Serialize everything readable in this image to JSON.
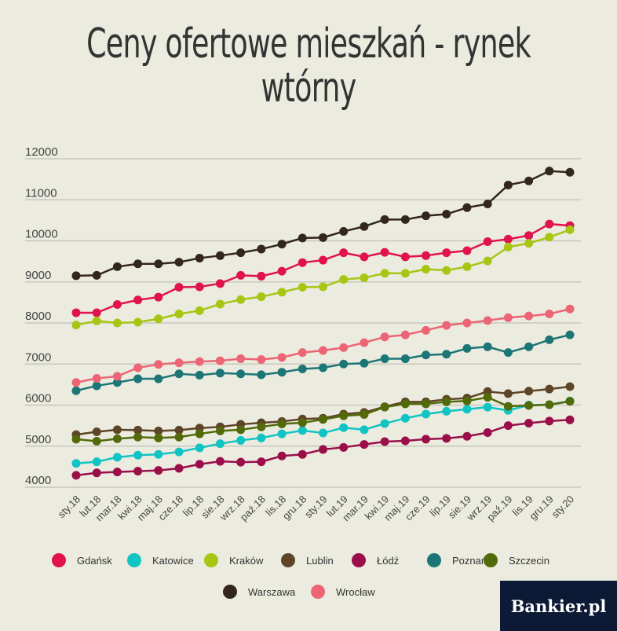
{
  "chart_data": {
    "type": "line",
    "title": "Ceny ofertowe mieszkań - rynek wtórny",
    "x": [
      "sty.18",
      "lut.18",
      "mar.18",
      "kwi.18",
      "maj.18",
      "cze.18",
      "lip.18",
      "sie.18",
      "wrz.18",
      "paź.18",
      "lis.18",
      "gru.18",
      "sty.19",
      "lut.19",
      "mar.19",
      "kwi.19",
      "maj.19",
      "cze.19",
      "lip.19",
      "sie.19",
      "wrz.19",
      "paź.19",
      "lis.19",
      "gru.19",
      "sty.20"
    ],
    "yticks": [
      4000,
      5000,
      6000,
      7000,
      8000,
      9000,
      10000,
      11000,
      12000
    ],
    "ylim": [
      3800,
      12200
    ],
    "grid": true,
    "legend_position": "bottom",
    "series": [
      {
        "name": "Gdańsk",
        "color": "#e0134f",
        "values": [
          8250,
          8250,
          8450,
          8560,
          8630,
          8870,
          8880,
          8960,
          9160,
          9140,
          9260,
          9470,
          9530,
          9710,
          9610,
          9720,
          9610,
          9640,
          9710,
          9760,
          9980,
          10040,
          10130,
          10410,
          10370
        ]
      },
      {
        "name": "Katowice",
        "color": "#10c4c4",
        "values": [
          4580,
          4620,
          4730,
          4780,
          4800,
          4860,
          4960,
          5060,
          5140,
          5200,
          5300,
          5380,
          5320,
          5450,
          5400,
          5550,
          5680,
          5780,
          5850,
          5900,
          5950,
          5870,
          6000,
          6010,
          6100
        ]
      },
      {
        "name": "Kraków",
        "color": "#a8c514",
        "values": [
          7950,
          8050,
          8000,
          8020,
          8100,
          8220,
          8300,
          8460,
          8570,
          8640,
          8750,
          8870,
          8880,
          9060,
          9100,
          9210,
          9210,
          9310,
          9280,
          9370,
          9510,
          9850,
          9940,
          10090,
          10270
        ]
      },
      {
        "name": "Lublin",
        "color": "#5e4527",
        "values": [
          5280,
          5350,
          5400,
          5390,
          5370,
          5390,
          5440,
          5470,
          5530,
          5570,
          5600,
          5660,
          5680,
          5780,
          5820,
          5960,
          6080,
          6080,
          6140,
          6170,
          6330,
          6280,
          6340,
          6390,
          6450
        ]
      },
      {
        "name": "Łódź",
        "color": "#9a0e4a",
        "values": [
          4290,
          4350,
          4370,
          4390,
          4410,
          4460,
          4560,
          4630,
          4610,
          4620,
          4760,
          4800,
          4920,
          4970,
          5040,
          5110,
          5130,
          5170,
          5190,
          5240,
          5330,
          5500,
          5560,
          5610,
          5640
        ]
      },
      {
        "name": "Poznań",
        "color": "#1d7676",
        "values": [
          6350,
          6470,
          6550,
          6640,
          6640,
          6760,
          6730,
          6780,
          6760,
          6740,
          6800,
          6880,
          6910,
          7000,
          7020,
          7130,
          7130,
          7220,
          7240,
          7380,
          7420,
          7280,
          7420,
          7590,
          7710
        ]
      },
      {
        "name": "Szczecin",
        "color": "#526a0a",
        "values": [
          5170,
          5120,
          5180,
          5220,
          5200,
          5220,
          5300,
          5370,
          5400,
          5470,
          5540,
          5570,
          5650,
          5740,
          5770,
          5950,
          6030,
          6030,
          6080,
          6100,
          6190,
          5970,
          5990,
          6010,
          6090
        ]
      },
      {
        "name": "Warszawa",
        "color": "#33261b",
        "values": [
          9150,
          9160,
          9370,
          9440,
          9440,
          9480,
          9580,
          9640,
          9710,
          9800,
          9920,
          10070,
          10080,
          10230,
          10350,
          10520,
          10520,
          10610,
          10650,
          10810,
          10900,
          11360,
          11460,
          11700,
          11670
        ]
      },
      {
        "name": "Wrocław",
        "color": "#ec6575",
        "values": [
          6550,
          6650,
          6700,
          6910,
          6990,
          7030,
          7060,
          7080,
          7130,
          7110,
          7160,
          7280,
          7330,
          7400,
          7520,
          7660,
          7710,
          7820,
          7940,
          8000,
          8060,
          8130,
          8170,
          8220,
          8340
        ]
      }
    ]
  },
  "legend_rows": [
    [
      0,
      1,
      2,
      3,
      4,
      5,
      6
    ],
    [
      7,
      8
    ]
  ],
  "brand": "Bankier.pl"
}
